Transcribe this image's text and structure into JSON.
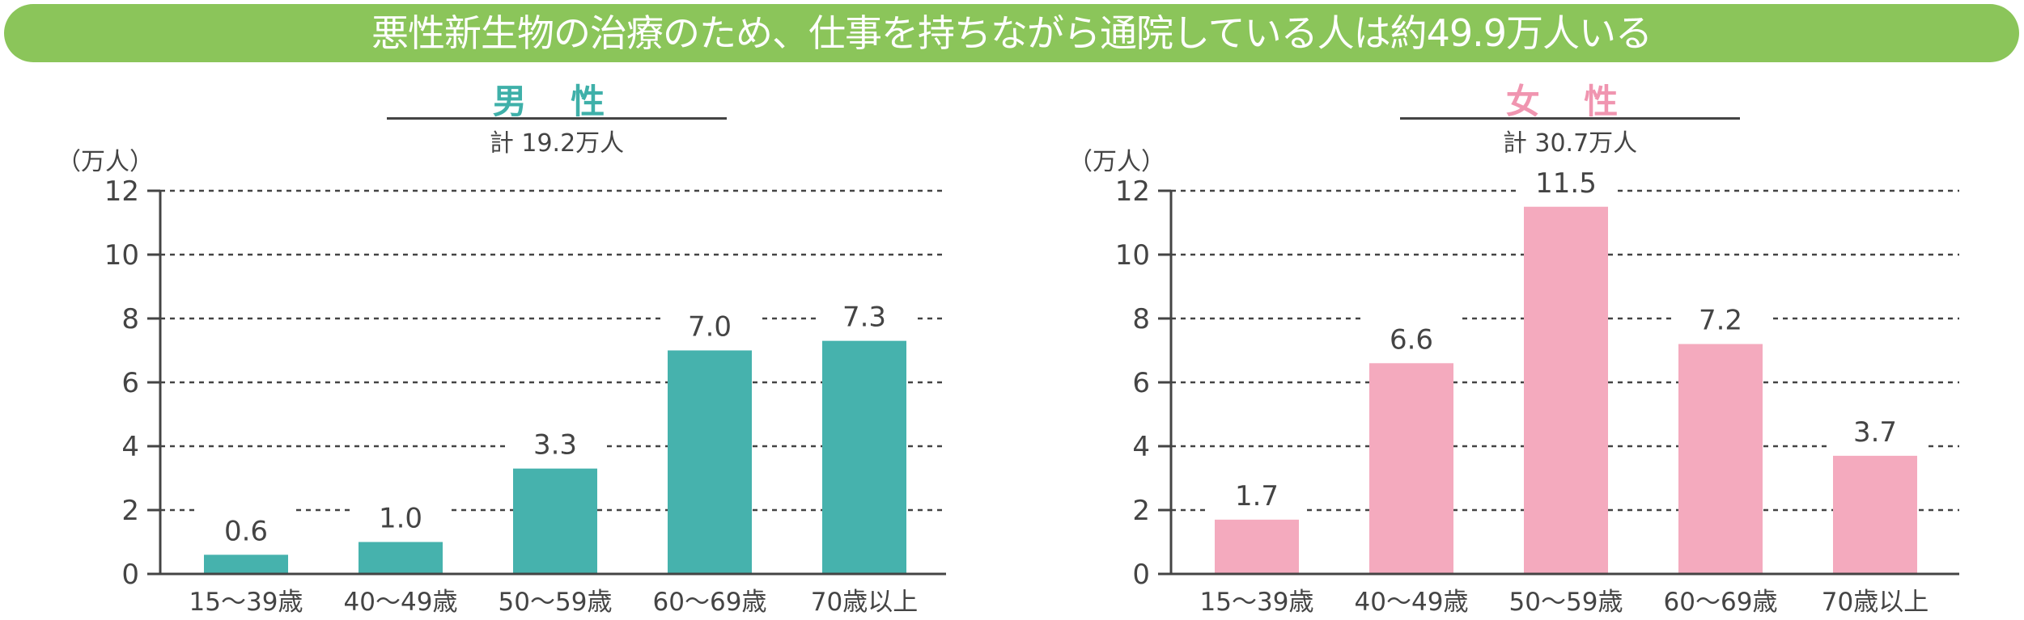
{
  "banner": {
    "title": "悪性新生物の治療のため、仕事を持ちながら通院している人は約49.9万人いる"
  },
  "chart_data": [
    {
      "type": "bar",
      "title": "男 性",
      "subtitle": "計 19.2万人",
      "ylabel": "（万人）",
      "categories": [
        "15〜39歳",
        "40〜49歳",
        "50〜59歳",
        "60〜69歳",
        "70歳以上"
      ],
      "values": [
        0.6,
        1.0,
        3.3,
        7.0,
        7.3
      ],
      "value_labels": [
        "0.6",
        "1.0",
        "3.3",
        "7.0",
        "7.3"
      ],
      "ylim": [
        0,
        12
      ],
      "yticks": [
        0,
        2,
        4,
        6,
        8,
        10,
        12
      ],
      "grid": true,
      "color": "#46b2ad",
      "title_color": "#3fb0a9"
    },
    {
      "type": "bar",
      "title": "女 性",
      "subtitle": "計 30.7万人",
      "ylabel": "（万人）",
      "categories": [
        "15〜39歳",
        "40〜49歳",
        "50〜59歳",
        "60〜69歳",
        "70歳以上"
      ],
      "values": [
        1.7,
        6.6,
        11.5,
        7.2,
        3.7
      ],
      "value_labels": [
        "1.7",
        "6.6",
        "11.5",
        "7.2",
        "3.7"
      ],
      "ylim": [
        0,
        12
      ],
      "yticks": [
        0,
        2,
        4,
        6,
        8,
        10,
        12
      ],
      "grid": true,
      "color": "#f4aabe",
      "title_color": "#f095b0"
    }
  ],
  "colors": {
    "banner": "#8bc55a"
  }
}
